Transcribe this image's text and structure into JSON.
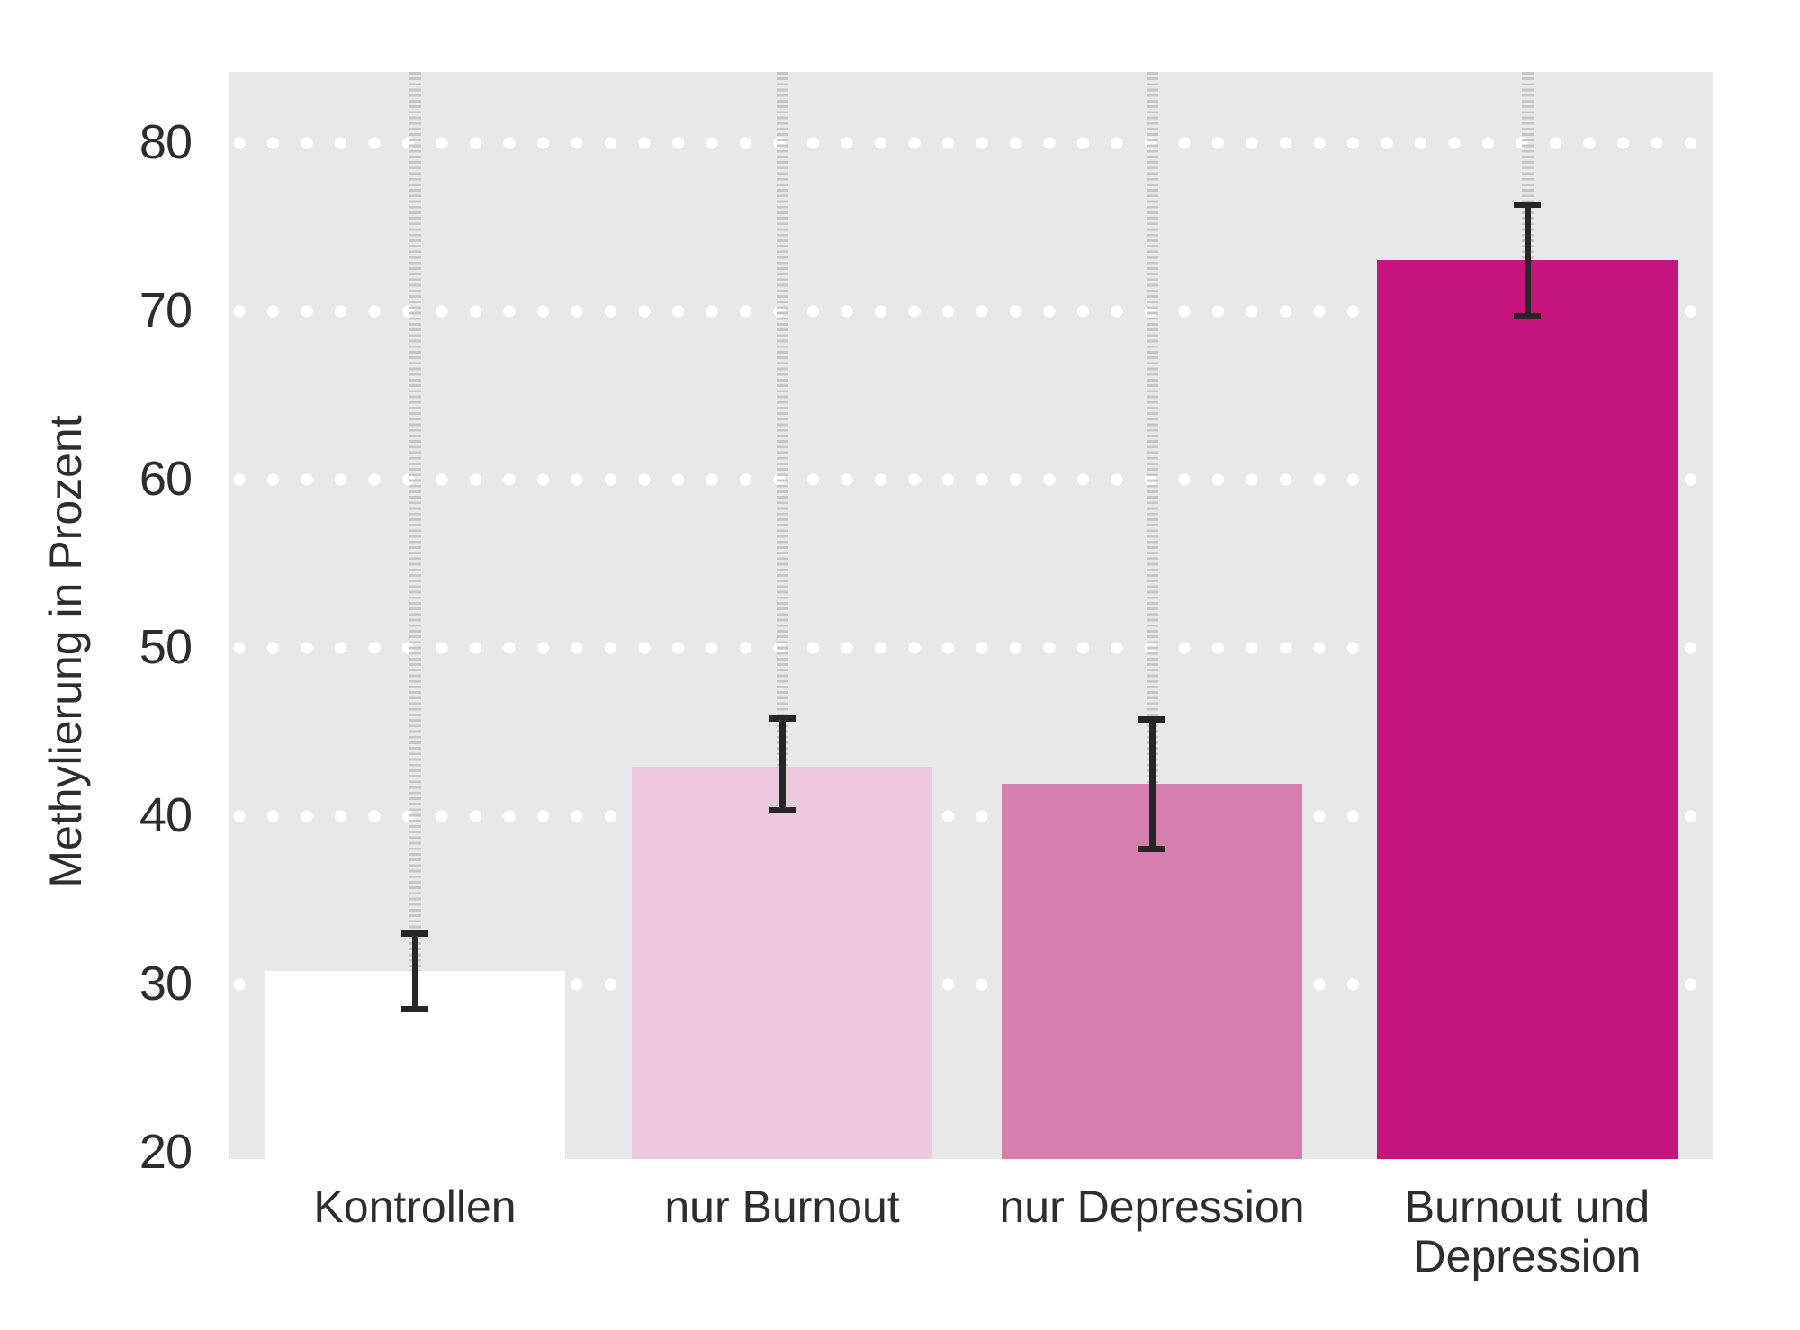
{
  "chart_data": {
    "type": "bar",
    "title": "",
    "ylabel": "Methylierung in Prozent",
    "xlabel": "",
    "categories": [
      "Kontrollen",
      "nur Burnout",
      "nur Depression",
      "Burnout und\nDepression"
    ],
    "values": [
      30.8,
      42.9,
      41.9,
      73.0
    ],
    "error_low": [
      28.5,
      40.3,
      38.0,
      69.7
    ],
    "error_high": [
      33.0,
      45.8,
      45.7,
      76.3
    ],
    "yticks": [
      20,
      30,
      40,
      50,
      60,
      70,
      80
    ],
    "ylim": [
      19.6,
      84.2
    ],
    "grid": "horizontal dotted white rows at each y tick (except bottom)",
    "legend": "none",
    "guide_columns": "light-gray dashed vertical ladder from plot top to each bar top",
    "bar_colors": [
      "#ffffff",
      "#ecc9df",
      "#d67fae",
      "#c4157d"
    ],
    "colors": {
      "page_background": "#ffffff",
      "plot_background": "#e9e8e9",
      "grid_dots": "#ffffff",
      "ladder_dashes": "#c6c6c6",
      "error_bar": "#262626",
      "text": "#2d2d2d"
    }
  }
}
